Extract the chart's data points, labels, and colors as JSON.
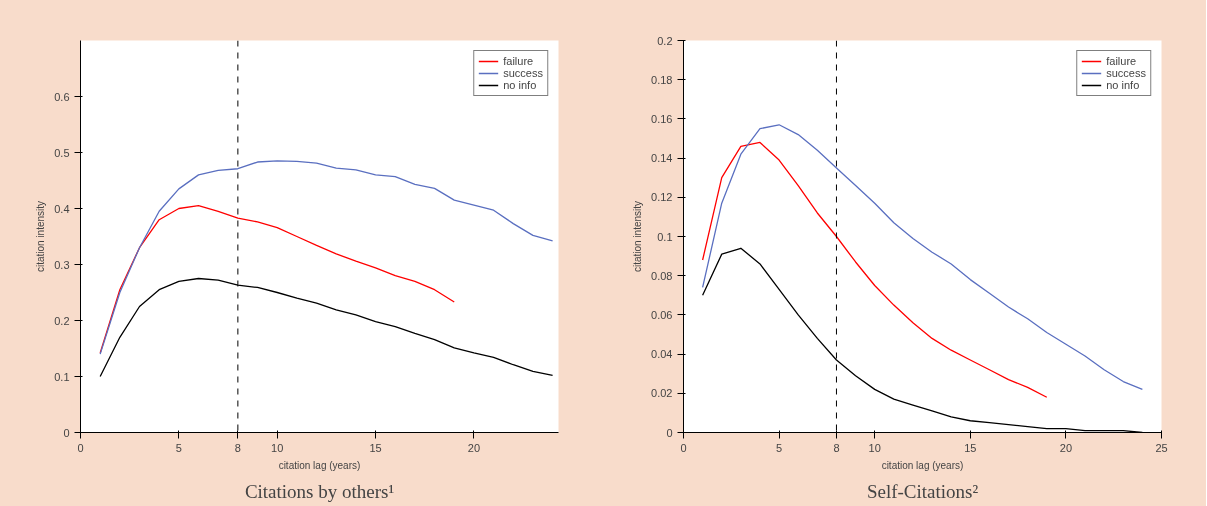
{
  "chart_data": [
    {
      "type": "line",
      "title": "Citations by others¹",
      "xlabel": "citation lag (years)",
      "ylabel": "citation intensity",
      "x": [
        1,
        2,
        3,
        4,
        5,
        6,
        7,
        8,
        9,
        10,
        11,
        12,
        13,
        14,
        15,
        16,
        17,
        18,
        19,
        20,
        21,
        22,
        23,
        24
      ],
      "xlim": [
        0,
        24.3
      ],
      "xticks": [
        0,
        5,
        8,
        10,
        15,
        20
      ],
      "ylim": [
        0,
        0.7
      ],
      "yticks": [
        0,
        0.1,
        0.2,
        0.3,
        0.4,
        0.5,
        0.6
      ],
      "grid": false,
      "legend": "top right",
      "marker": "none",
      "line_style": "solid",
      "ref_lines": [
        {
          "axis": "x",
          "value": 8,
          "color": "#000000",
          "line_style": "dashed"
        }
      ],
      "series": [
        {
          "name": "failure",
          "color": "#ff0000",
          "values": [
            0.142,
            0.255,
            0.33,
            0.38,
            0.4,
            0.405,
            0.395,
            0.383,
            0.376,
            0.366,
            0.35,
            0.334,
            0.319,
            0.306,
            0.294,
            0.28,
            0.27,
            0.255,
            0.233,
            null,
            null,
            null,
            null,
            null
          ]
        },
        {
          "name": "success",
          "color": "#5a6fc0",
          "values": [
            0.14,
            0.25,
            0.33,
            0.395,
            0.435,
            0.46,
            0.468,
            0.471,
            0.483,
            0.485,
            0.484,
            0.481,
            0.472,
            0.469,
            0.46,
            0.457,
            0.443,
            0.436,
            0.415,
            0.406,
            0.397,
            0.373,
            0.352,
            0.342
          ]
        },
        {
          "name": "no info",
          "color": "#000000",
          "values": [
            0.1,
            0.17,
            0.225,
            0.255,
            0.27,
            0.275,
            0.272,
            0.263,
            0.259,
            0.25,
            0.24,
            0.231,
            0.219,
            0.21,
            0.198,
            0.189,
            0.177,
            0.166,
            0.151,
            0.142,
            0.134,
            0.121,
            0.109,
            0.102
          ]
        }
      ]
    },
    {
      "type": "line",
      "title": "Self-Citations²",
      "xlabel": "citation lag (years)",
      "ylabel": "citation intensity",
      "x": [
        1,
        2,
        3,
        4,
        5,
        6,
        7,
        8,
        9,
        10,
        11,
        12,
        13,
        14,
        15,
        16,
        17,
        18,
        19,
        20,
        21,
        22,
        23,
        24
      ],
      "xlim": [
        0,
        25
      ],
      "xticks": [
        0,
        5,
        8,
        10,
        15,
        20,
        25
      ],
      "ylim": [
        0,
        0.2
      ],
      "yticks": [
        0,
        0.02,
        0.04,
        0.06,
        0.08,
        0.1,
        0.12,
        0.14,
        0.16,
        0.18,
        0.2
      ],
      "grid": false,
      "legend": "top right",
      "marker": "none",
      "line_style": "solid",
      "ref_lines": [
        {
          "axis": "x",
          "value": 8,
          "color": "#000000",
          "line_style": "dashed"
        }
      ],
      "series": [
        {
          "name": "failure",
          "color": "#ff0000",
          "values": [
            0.088,
            0.13,
            0.146,
            0.148,
            0.139,
            0.126,
            0.112,
            0.1,
            0.087,
            0.075,
            0.065,
            0.056,
            0.048,
            0.042,
            0.037,
            0.032,
            0.027,
            0.023,
            0.018,
            null,
            null,
            null,
            null,
            null
          ]
        },
        {
          "name": "success",
          "color": "#5a6fc0",
          "values": [
            0.074,
            0.117,
            0.142,
            0.155,
            0.157,
            0.152,
            0.144,
            0.135,
            0.126,
            0.117,
            0.107,
            0.099,
            0.092,
            0.086,
            0.078,
            0.071,
            0.064,
            0.058,
            0.051,
            0.045,
            0.039,
            0.032,
            0.026,
            0.022
          ]
        },
        {
          "name": "no info",
          "color": "#000000",
          "values": [
            0.07,
            0.091,
            0.094,
            0.086,
            0.073,
            0.06,
            0.048,
            0.037,
            0.029,
            0.022,
            0.017,
            0.014,
            0.011,
            0.008,
            0.006,
            0.005,
            0.004,
            0.003,
            0.002,
            0.002,
            0.001,
            0.001,
            0.001,
            0.0
          ]
        }
      ]
    }
  ]
}
